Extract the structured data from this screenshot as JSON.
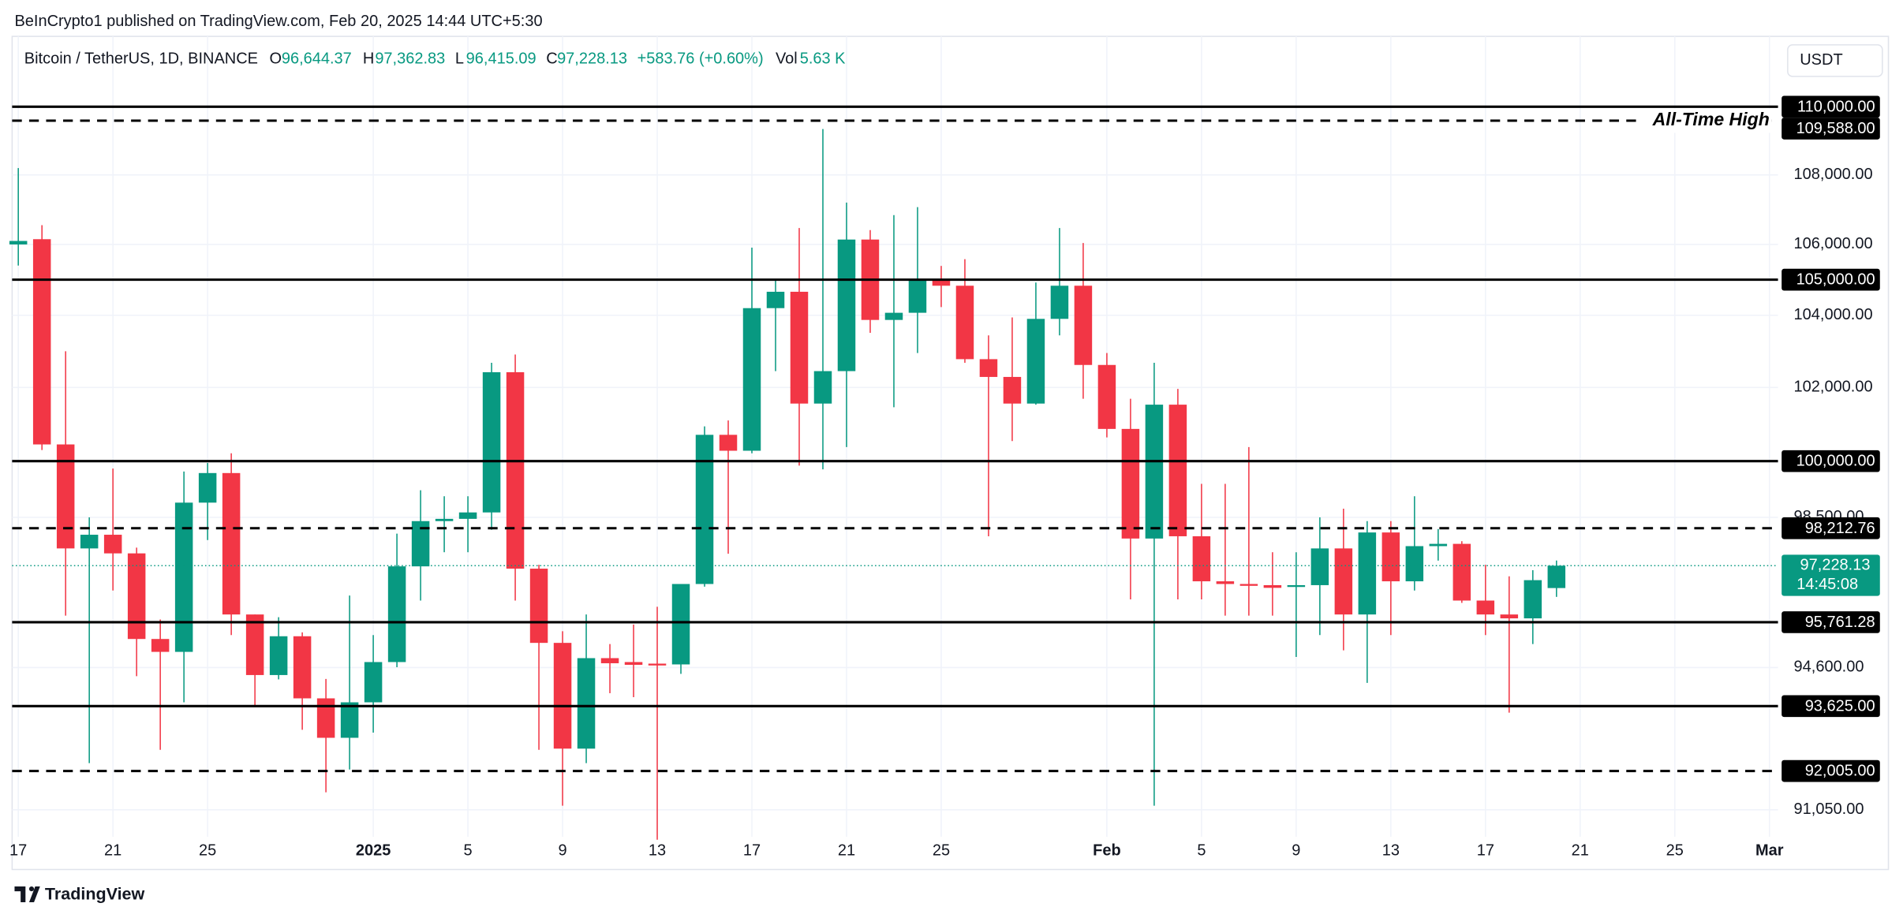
{
  "chart_data": {
    "type": "candlestick",
    "header": {
      "publisher": "BeInCrypto1 published on TradingView.com, Feb 20, 2025 14:44 UTC+5:30",
      "symbol": "Bitcoin / TetherUS, 1D, BINANCE",
      "o_label": "O",
      "o": "96,644.37",
      "h_label": "H",
      "h": "97,362.83",
      "l_label": "L",
      "l": "96,415.09",
      "c_label": "C",
      "c": "97,228.13",
      "change": "+583.76 (+0.60%)",
      "vol_label": "Vol",
      "vol": "5.63 K",
      "currency": "USDT"
    },
    "footer": "TradingView",
    "x": [
      0,
      1,
      2,
      3,
      4,
      5,
      6,
      7,
      8,
      9,
      10,
      11,
      12,
      13,
      14,
      15,
      16,
      17,
      18,
      19,
      20,
      21,
      22,
      23,
      24,
      25,
      26,
      27,
      28,
      29,
      30,
      31,
      32,
      33,
      34,
      35,
      36,
      37,
      38,
      39,
      40,
      41,
      42,
      43,
      44,
      45,
      46,
      47,
      48,
      49,
      50,
      51,
      52,
      53,
      54,
      55,
      56,
      57,
      58,
      59,
      60,
      61,
      62,
      63,
      64,
      65
    ],
    "open": [
      106000,
      106150,
      100450,
      97680,
      98040,
      97550,
      95330,
      95000,
      98890,
      99680,
      95960,
      94410,
      95400,
      93820,
      92830,
      93720,
      94740,
      97210,
      98400,
      98460,
      98630,
      102420,
      97150,
      95230,
      92560,
      94840,
      94740,
      94700,
      94680,
      96750,
      100710,
      100280,
      104200,
      104660,
      101560,
      102450,
      106140,
      103870,
      104070,
      104990,
      104830,
      102780,
      102290,
      101560,
      103900,
      104830,
      102620,
      100870,
      97940,
      101530,
      98000,
      96820,
      96750,
      96720,
      96690,
      96720,
      97680,
      95960,
      98100,
      96820,
      97740,
      97800,
      96320,
      95960,
      95860,
      96644.37
    ],
    "high": [
      108200,
      106550,
      103000,
      98500,
      99800,
      97700,
      95830,
      99720,
      99950,
      100210,
      95960,
      95890,
      95500,
      94310,
      96450,
      95430,
      98070,
      99220,
      99060,
      99060,
      102680,
      102910,
      97250,
      95530,
      95960,
      95200,
      95700,
      96160,
      96750,
      100940,
      101100,
      105910,
      104990,
      106470,
      109340,
      107200,
      106410,
      106840,
      107070,
      105390,
      105580,
      103440,
      103940,
      104920,
      106470,
      106040,
      102950,
      101690,
      102680,
      101960,
      99390,
      99390,
      100380,
      97580,
      97580,
      98500,
      98730,
      98400,
      98400,
      99060,
      98190,
      97870,
      97250,
      96950,
      97110,
      97362.83
    ],
    "low": [
      105400,
      100300,
      95930,
      92200,
      96580,
      94380,
      92530,
      93720,
      97900,
      95430,
      93620,
      94300,
      93030,
      91480,
      92040,
      92960,
      94610,
      96320,
      97580,
      97580,
      98170,
      96320,
      92530,
      91150,
      92200,
      93950,
      93850,
      90320,
      94440,
      96680,
      97540,
      100210,
      102450,
      99880,
      99780,
      100380,
      103510,
      101460,
      102950,
      104230,
      102680,
      98000,
      100540,
      101530,
      103440,
      101690,
      100640,
      96350,
      91150,
      96350,
      96350,
      95930,
      95930,
      95930,
      94870,
      95430,
      95040,
      94210,
      95430,
      96580,
      97360,
      96260,
      95430,
      93460,
      95200,
      96415.09
    ],
    "close": [
      106100,
      100450,
      97680,
      98040,
      97550,
      95330,
      95000,
      98890,
      99680,
      95960,
      94410,
      95400,
      93820,
      92830,
      93720,
      94740,
      97210,
      98400,
      98460,
      98630,
      102420,
      97150,
      95230,
      92560,
      94840,
      94710,
      94670,
      94680,
      96750,
      100710,
      100280,
      104200,
      104660,
      101560,
      102450,
      106140,
      103870,
      104070,
      104990,
      104830,
      102780,
      102290,
      101560,
      103900,
      104830,
      102620,
      100870,
      97940,
      101530,
      98000,
      96820,
      96750,
      96720,
      96650,
      96720,
      97680,
      95960,
      98100,
      96820,
      97740,
      97800,
      96320,
      95960,
      95860,
      96850,
      97228.13
    ],
    "up_color": "#089981",
    "down_color": "#f23645",
    "xlim": [
      -0.26,
      74.36
    ],
    "xticks": [
      {
        "value": 0,
        "label": "17"
      },
      {
        "value": 4,
        "label": "21"
      },
      {
        "value": 8,
        "label": "25"
      },
      {
        "value": 15,
        "label": "2025",
        "bold": true
      },
      {
        "value": 19,
        "label": "5"
      },
      {
        "value": 23,
        "label": "9"
      },
      {
        "value": 27,
        "label": "13"
      },
      {
        "value": 31,
        "label": "17"
      },
      {
        "value": 35,
        "label": "21"
      },
      {
        "value": 39,
        "label": "25"
      },
      {
        "value": 46,
        "label": "Feb",
        "bold": true
      },
      {
        "value": 50,
        "label": "5"
      },
      {
        "value": 54,
        "label": "9"
      },
      {
        "value": 58,
        "label": "13"
      },
      {
        "value": 62,
        "label": "17"
      },
      {
        "value": 66,
        "label": "21"
      },
      {
        "value": 70,
        "label": "25"
      },
      {
        "value": 74,
        "label": "Mar",
        "bold": true
      }
    ],
    "ylim": [
      89600,
      112100
    ],
    "log_scale": true,
    "grid": true,
    "yticks": [
      {
        "value": 108000,
        "label": "108,000.00"
      },
      {
        "value": 106000,
        "label": "106,000.00"
      },
      {
        "value": 104000,
        "label": "104,000.00"
      },
      {
        "value": 102000,
        "label": "102,000.00"
      },
      {
        "value": 98500,
        "label": "98,500.00"
      },
      {
        "value": 94600,
        "label": "94,600.00"
      },
      {
        "value": 91050,
        "label": "91,050.00"
      }
    ],
    "levels": [
      {
        "value": 110000,
        "label": "110,000.00",
        "style": "solid"
      },
      {
        "value": 109588,
        "label": "109,588.00",
        "style": "dashed",
        "annotation": "All-Time High"
      },
      {
        "value": 105000,
        "label": "105,000.00",
        "style": "solid"
      },
      {
        "value": 100000,
        "label": "100,000.00",
        "style": "solid"
      },
      {
        "value": 98212.76,
        "label": "98,212.76",
        "style": "dashed"
      },
      {
        "value": 95761.28,
        "label": "95,761.28",
        "style": "solid"
      },
      {
        "value": 93625,
        "label": "93,625.00",
        "style": "solid"
      },
      {
        "value": 92005,
        "label": "92,005.00",
        "style": "dashed"
      }
    ],
    "last_price": {
      "value": 97228.13,
      "label": "97,228.13",
      "countdown": "14:45:08"
    }
  }
}
